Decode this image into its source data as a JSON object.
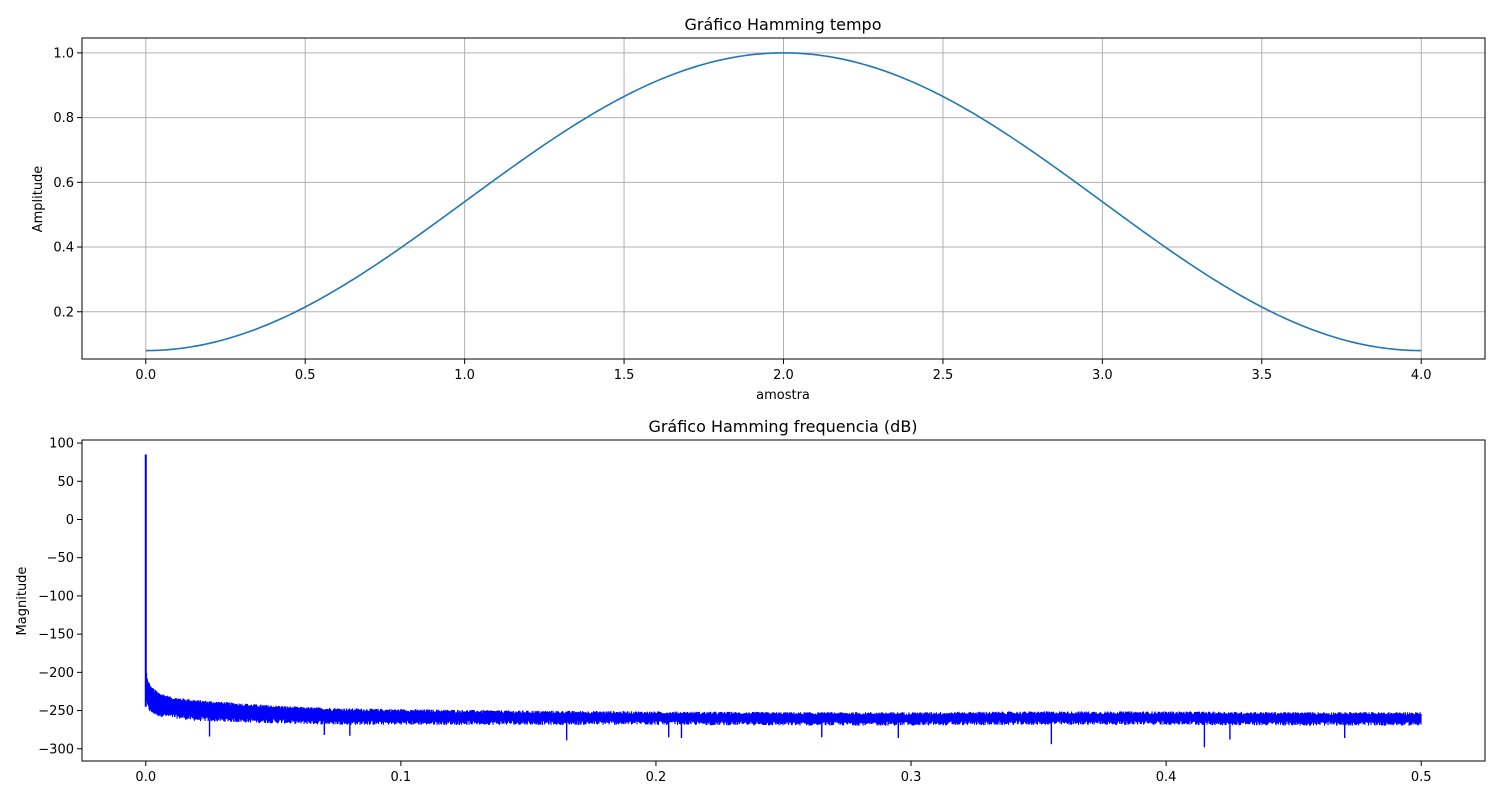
{
  "chart_data": [
    {
      "type": "line",
      "title": "Gráfico Hamming tempo",
      "xlabel": "amostra",
      "ylabel": "Amplitude",
      "xlim": [
        -0.2,
        4.2
      ],
      "ylim": [
        0.054,
        1.046
      ],
      "grid": true,
      "xticks": [
        0.0,
        0.5,
        1.0,
        1.5,
        2.0,
        2.5,
        3.0,
        3.5,
        4.0
      ],
      "xtick_labels": [
        "0.0",
        "0.5",
        "1.0",
        "1.5",
        "2.0",
        "2.5",
        "3.0",
        "3.5",
        "4.0"
      ],
      "yticks": [
        0.2,
        0.4,
        0.6,
        0.8,
        1.0
      ],
      "ytick_labels": [
        "0.2",
        "0.4",
        "0.6",
        "0.8",
        "1.0"
      ],
      "color": "#1f77b4",
      "series": [
        {
          "x": [
            0.0,
            0.2,
            0.4,
            0.6,
            0.8,
            1.0,
            1.2,
            1.4,
            1.6,
            1.8,
            2.0,
            2.2,
            2.4,
            2.6,
            2.8,
            3.0,
            3.2,
            3.4,
            3.6,
            3.8,
            4.0
          ],
          "values": [
            0.08,
            0.1025,
            0.1679,
            0.2696,
            0.3979,
            0.54,
            0.6821,
            0.8104,
            0.9121,
            0.9775,
            1.0,
            0.9775,
            0.9121,
            0.8104,
            0.6821,
            0.54,
            0.3979,
            0.2696,
            0.1679,
            0.1025,
            0.08
          ]
        }
      ]
    },
    {
      "type": "line",
      "title": "Gráfico Hamming frequencia (dB)",
      "xlabel": "",
      "ylabel": "Magnitude",
      "xlim": [
        -0.025,
        0.525
      ],
      "ylim": [
        -316,
        104
      ],
      "grid": false,
      "xticks": [
        0.0,
        0.1,
        0.2,
        0.3,
        0.4,
        0.5
      ],
      "xtick_labels": [
        "0.0",
        "0.1",
        "0.2",
        "0.3",
        "0.4",
        "0.5"
      ],
      "yticks": [
        100,
        50,
        0,
        -50,
        -100,
        -150,
        -200,
        -250,
        -300
      ],
      "ytick_labels": [
        "100",
        "50",
        "0",
        "−50",
        "−100",
        "−150",
        "−200",
        "−250",
        "−300"
      ],
      "color": "#0000ff",
      "series": [
        {
          "x": [
            0.0,
            0.0002,
            0.0005,
            0.001,
            0.002,
            0.005,
            0.01,
            0.02,
            0.04,
            0.06,
            0.08,
            0.1,
            0.15,
            0.2,
            0.25,
            0.3,
            0.35,
            0.4,
            0.45,
            0.5
          ],
          "values": [
            85,
            -200,
            -210,
            -215,
            -222,
            -230,
            -236,
            -240,
            -245,
            -249,
            -251,
            -252,
            -254,
            -255,
            -256,
            -256,
            -255,
            -255,
            -256,
            -256
          ],
          "noise_floor": [
            -205,
            -235,
            -242,
            -247,
            -252,
            -256,
            -258,
            -262,
            -264,
            -266,
            -267,
            -267,
            -267,
            -267,
            -268,
            -268,
            -267,
            -267,
            -268,
            -268
          ],
          "dips": [
            [
              0.025,
              -284
            ],
            [
              0.07,
              -282
            ],
            [
              0.08,
              -283
            ],
            [
              0.165,
              -289
            ],
            [
              0.205,
              -285
            ],
            [
              0.21,
              -286
            ],
            [
              0.265,
              -285
            ],
            [
              0.295,
              -286
            ],
            [
              0.355,
              -294
            ],
            [
              0.415,
              -298
            ],
            [
              0.425,
              -288
            ],
            [
              0.47,
              -286
            ]
          ]
        }
      ]
    }
  ]
}
